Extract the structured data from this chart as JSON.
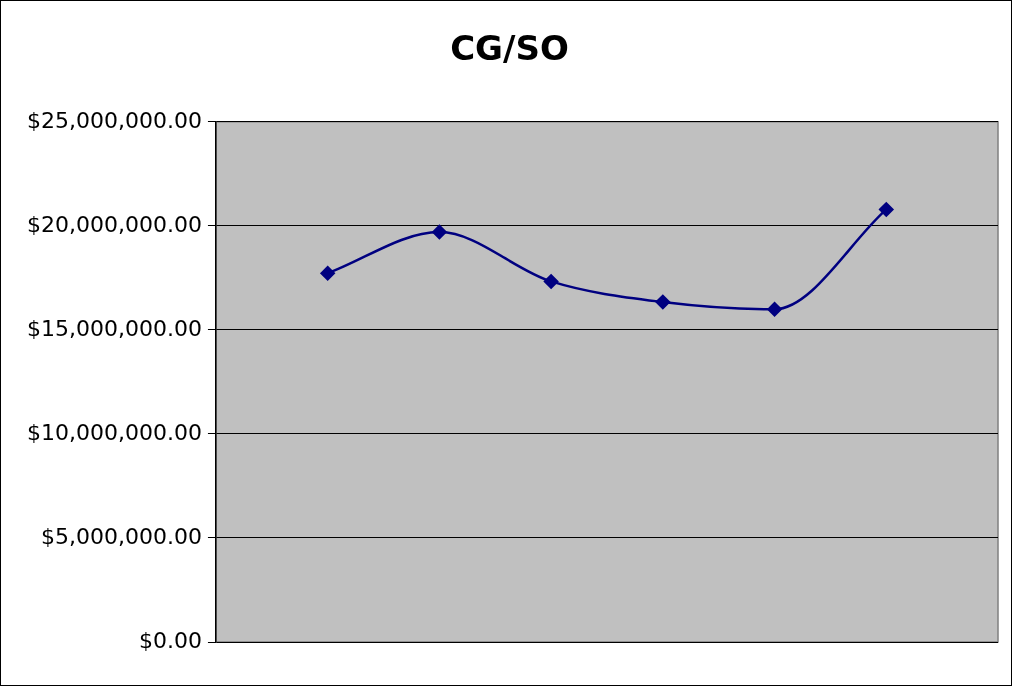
{
  "chart_data": {
    "type": "line",
    "title": "CG/SO",
    "categories": [
      null,
      null,
      null,
      null,
      null,
      null
    ],
    "series": [
      {
        "color": "#000080",
        "values": [
          17720000,
          19700000,
          17330000,
          16340000,
          15990000,
          20790000
        ]
      }
    ],
    "ylim": [
      0,
      25000000
    ],
    "yticks": [
      {
        "value": 0,
        "label": "$0.00"
      },
      {
        "value": 5000000,
        "label": "$5,000,000.00"
      },
      {
        "value": 10000000,
        "label": "$10,000,000.00"
      },
      {
        "value": 15000000,
        "label": "$15,000,000.00"
      },
      {
        "value": 20000000,
        "label": "$20,000,000.00"
      },
      {
        "value": 25000000,
        "label": "$25,000,000.00"
      }
    ],
    "grid": "y",
    "legend": false,
    "marker": "diamond",
    "line_style": "solid"
  }
}
